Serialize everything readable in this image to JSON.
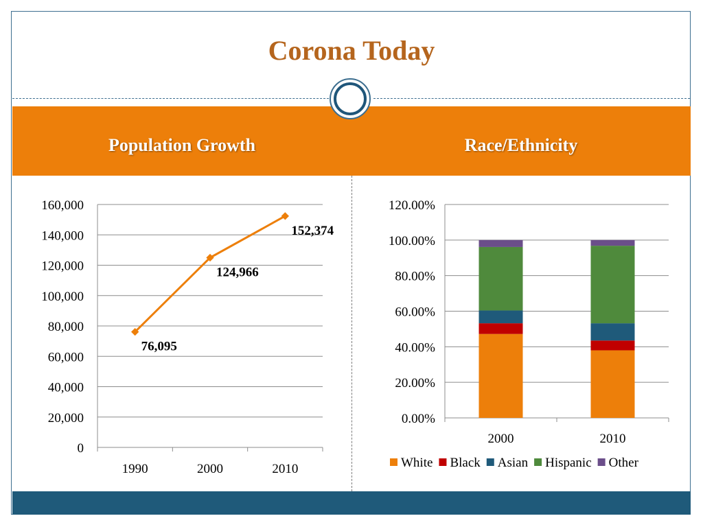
{
  "slide": {
    "title": "Corona Today",
    "left_heading": "Population Growth",
    "right_heading": "Race/Ethnicity"
  },
  "colors": {
    "title": "#b5651d",
    "band": "#ed7f0a",
    "footer": "#1f5a7a",
    "frame": "#3c6e8f",
    "line": "#ed7f0a"
  },
  "chart_data": [
    {
      "type": "line",
      "title": "Population Growth",
      "categories": [
        "1990",
        "2000",
        "2010"
      ],
      "series": [
        {
          "values": [
            76095,
            124966,
            152374
          ],
          "data_labels": [
            "76,095",
            "124,966",
            "152,374"
          ],
          "color": "#ed7f0a"
        }
      ],
      "ylim": [
        0,
        160000
      ],
      "y_ticks": [
        "0",
        "20,000",
        "40,000",
        "60,000",
        "80,000",
        "100,000",
        "120,000",
        "140,000",
        "160,000"
      ],
      "grid": true,
      "legend": "none"
    },
    {
      "type": "bar",
      "stacked": true,
      "title": "Race/Ethnicity",
      "categories": [
        "2000",
        "2010"
      ],
      "series": [
        {
          "name": "White",
          "values": [
            47.2,
            38.0
          ],
          "color": "#ed7f0a"
        },
        {
          "name": "Black",
          "values": [
            6.0,
            5.5
          ],
          "color": "#c00000"
        },
        {
          "name": "Asian",
          "values": [
            7.2,
            9.7
          ],
          "color": "#1f5a7a"
        },
        {
          "name": "Hispanic",
          "values": [
            35.7,
            43.6
          ],
          "color": "#4f8a3c"
        },
        {
          "name": "Other",
          "values": [
            3.9,
            3.2
          ],
          "color": "#6b4e8a"
        }
      ],
      "ylim": [
        0,
        120
      ],
      "y_ticks": [
        "0.00%",
        "20.00%",
        "40.00%",
        "60.00%",
        "80.00%",
        "100.00%",
        "120.00%"
      ],
      "grid": true,
      "legend": "bottom"
    }
  ]
}
